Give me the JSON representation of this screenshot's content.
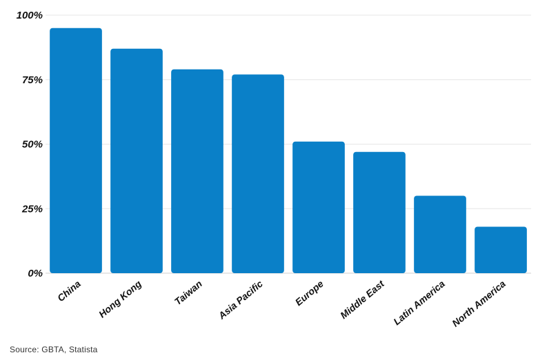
{
  "chart_data": {
    "type": "bar",
    "categories": [
      "China",
      "Hong Kong",
      "Taiwan",
      "Asia Pacific",
      "Europe",
      "Middle East",
      "Latin America",
      "North America"
    ],
    "values": [
      95,
      87,
      79,
      77,
      51,
      47,
      30,
      18
    ],
    "yticks": [
      "0%",
      "25%",
      "50%",
      "75%",
      "100%"
    ],
    "ylim": [
      0,
      100
    ],
    "bar_color": "#0a80c8",
    "grid": true,
    "source": "Source: GBTA, Statista"
  }
}
